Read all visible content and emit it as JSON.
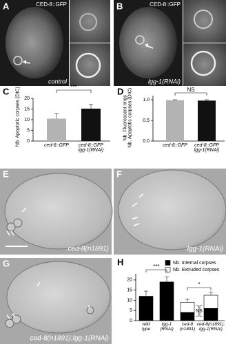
{
  "panels": {
    "a": {
      "letter": "A",
      "marker": "CED-8::GFP",
      "condition": "control"
    },
    "b": {
      "letter": "B",
      "marker": "CED-8::GFP",
      "condition": "lgg-1(RNAi)"
    },
    "c": {
      "letter": "C"
    },
    "d": {
      "letter": "D"
    },
    "e": {
      "letter": "E",
      "condition": "ced-8(n1891)"
    },
    "f": {
      "letter": "F",
      "condition": "lgg-1(RNAi)"
    },
    "g": {
      "letter": "G",
      "condition": "ced-8(n1891);lgg-1(RNAi)"
    },
    "h": {
      "letter": "H"
    }
  },
  "chart_data": [
    {
      "type": "bar",
      "ylabel": "Nb. Apoptotic corpses (DIC)",
      "categories": [
        "ced-8::GFP",
        "ced-8::GFP\nlgg-1(RNAi)"
      ],
      "values": [
        10.5,
        15.2
      ],
      "errors": [
        2.5,
        2
      ],
      "colors": [
        "#b3b3b3",
        "#111111"
      ],
      "ylim": [
        0,
        20
      ],
      "yticks": [
        0,
        5,
        10,
        15,
        20
      ],
      "annotations": [
        "***"
      ]
    },
    {
      "type": "bar",
      "ylabel": "Nb. Fluorescent rings\nNb. Apoptotic corpses (DIC)",
      "categories": [
        "ced-8::GFP",
        "ced-8::GFP\nlgg-1(RNAi)"
      ],
      "values": [
        0.99,
        0.98
      ],
      "errors": [
        0.01,
        0.02
      ],
      "colors": [
        "#b3b3b3",
        "#111111"
      ],
      "ylim": [
        0,
        1.1
      ],
      "yticks": [
        {
          "value": 0,
          "label": "0.0"
        },
        {
          "value": 0.5,
          "label": "0.5"
        },
        {
          "value": 1,
          "label": "1.0"
        }
      ],
      "annotations": [
        "NS"
      ]
    },
    {
      "type": "stacked_bar",
      "categories": [
        "wild\ntype",
        "lgg-1\n(RNAi)",
        "ced-8\n(n1891)",
        "ced-8(n1891);\nlgg-1(RNAi)"
      ],
      "series": [
        {
          "name": "Nb. Internal corpses",
          "color": "#000000",
          "values": [
            12,
            19,
            4,
            6
          ],
          "errors": [
            2.5,
            2.5,
            2,
            2.5
          ]
        },
        {
          "name": "Nb. Extruded corpses",
          "color": "#ffffff",
          "values": [
            0,
            0,
            5,
            6.5
          ],
          "errors": [
            null,
            null,
            1.5,
            1.5
          ]
        }
      ],
      "ylim": [
        0,
        23
      ],
      "yticks": [
        0,
        5,
        10,
        15,
        20
      ],
      "annotations": [
        "***",
        "NS",
        "*"
      ]
    }
  ]
}
